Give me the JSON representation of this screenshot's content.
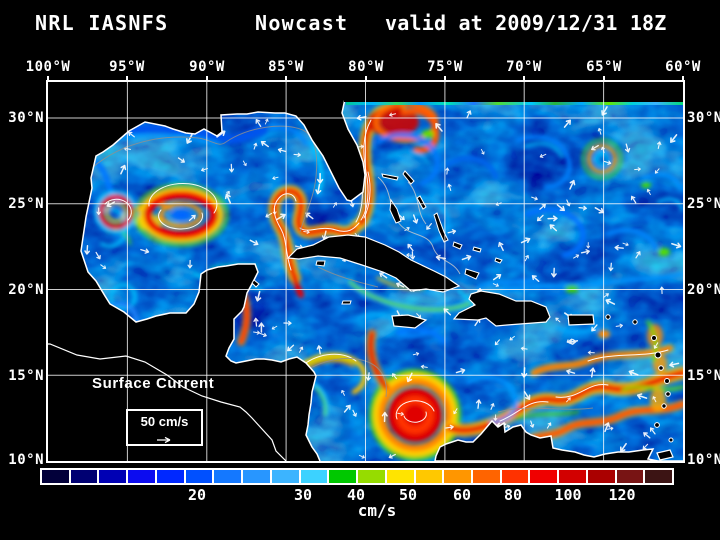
{
  "header": {
    "model": "NRL IASNFS",
    "product": "Nowcast",
    "valid_time": "valid at 2009/12/31 18Z"
  },
  "axes": {
    "lon": [
      "100°W",
      "95°W",
      "90°W",
      "85°W",
      "80°W",
      "75°W",
      "70°W",
      "65°W",
      "60°W"
    ],
    "lat": [
      "30°N",
      "25°N",
      "20°N",
      "15°N",
      "10°N"
    ]
  },
  "overlay": {
    "field_label": "Surface Current",
    "scale_value": "50 cm/s"
  },
  "colorbar": {
    "units": "cm/s",
    "ticks": [
      "20",
      "30",
      "40",
      "50",
      "60",
      "80",
      "100",
      "120"
    ],
    "cell_colors": [
      "#02003a",
      "#000072",
      "#0000b4",
      "#0c0cf0",
      "#0028ff",
      "#0050ff",
      "#1478ff",
      "#2896ff",
      "#3cb4ff",
      "#3cd2ff",
      "#00c800",
      "#96dc00",
      "#ffe400",
      "#ffc800",
      "#ff9600",
      "#ff6400",
      "#ff3200",
      "#f00000",
      "#d20000",
      "#aa0000",
      "#781414",
      "#3c1414"
    ]
  },
  "chart_data": {
    "type": "heatmap",
    "title": "NRL IASNFS Nowcast valid at 2009/12/31 18Z",
    "field": "Surface Current speed",
    "units": "cm/s",
    "colorbar_tick_values": [
      20,
      30,
      40,
      50,
      60,
      80,
      100,
      120
    ],
    "reference_vector": "50 cm/s",
    "lon_ticks_degW": [
      100,
      95,
      90,
      85,
      80,
      75,
      70,
      65,
      60
    ],
    "lat_ticks_degN": [
      30,
      25,
      20,
      15,
      10
    ],
    "grid": "on",
    "legend_position": "bottom",
    "notable_features": [
      "Loop Current ring in central Gulf of Mexico",
      "Gulf Stream along Florida east coast",
      "Caribbean Current along South American coast",
      "Panama-Colombia gyre eddy"
    ]
  }
}
